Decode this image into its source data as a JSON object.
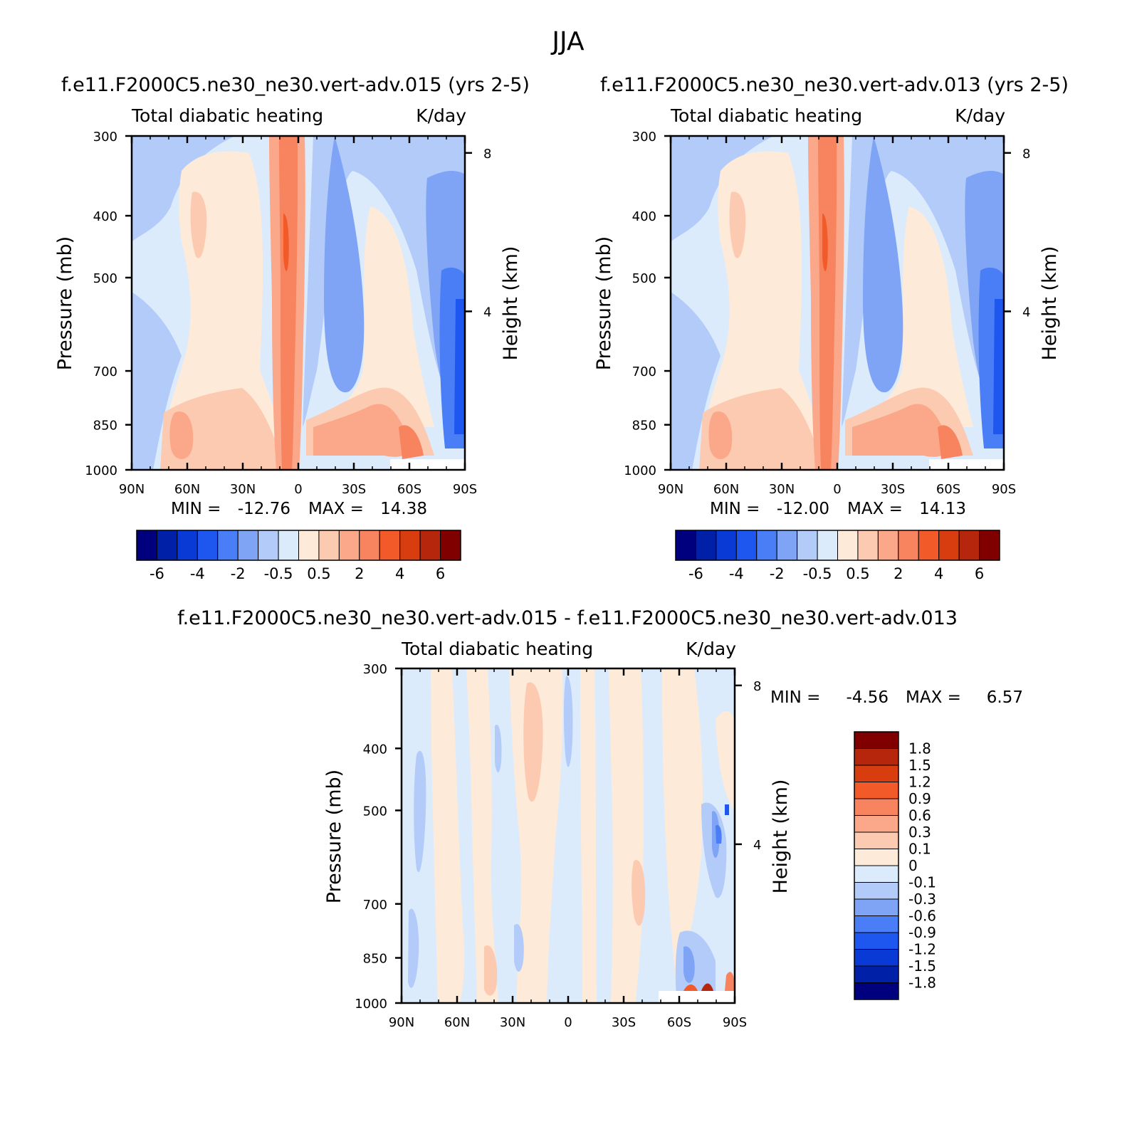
{
  "figure": {
    "title": "JJA"
  },
  "chart_data": [
    {
      "id": "p1",
      "type": "heatmap",
      "title": "f.e11.F2000C5.ne30_ne30.vert-adv.015 (yrs 2-5)",
      "left_string": "Total diabatic heating",
      "right_string": "K/day",
      "xlabel": "",
      "ylabel": "Pressure (mb)",
      "y2label": "Height (km)",
      "x_ticks": [
        "90N",
        "60N",
        "30N",
        "0",
        "30S",
        "60S",
        "90S"
      ],
      "y_ticks": [
        "300",
        "400",
        "500",
        "700",
        "850",
        "1000"
      ],
      "y2_ticks": [
        "8",
        "4"
      ],
      "ylim": [
        1000,
        300
      ],
      "stats": {
        "min_label": "MIN =",
        "min": "-12.76",
        "max_label": "MAX =",
        "max": "14.38"
      },
      "levels": [
        -6,
        -5,
        -4,
        -3,
        -2,
        -1,
        -0.5,
        0,
        0.5,
        1,
        2,
        3,
        4,
        5,
        6
      ],
      "colorbar_labels": [
        "-6",
        "-4",
        "-2",
        "-0.5",
        "0.5",
        "2",
        "4",
        "6"
      ],
      "colors": [
        "#00007f",
        "#0020a8",
        "#0a3ad6",
        "#1e56f0",
        "#4a7ef6",
        "#7fa4f6",
        "#b3cbf9",
        "#dcebfc",
        "#feead8",
        "#fccab0",
        "#fba88a",
        "#f7845e",
        "#f25a2a",
        "#d83d10",
        "#b5260c",
        "#800000"
      ],
      "colorbar_orientation": "horizontal"
    },
    {
      "id": "p2",
      "type": "heatmap",
      "title": "f.e11.F2000C5.ne30_ne30.vert-adv.013 (yrs 2-5)",
      "left_string": "Total diabatic heating",
      "right_string": "K/day",
      "xlabel": "",
      "ylabel": "Pressure (mb)",
      "y2label": "Height (km)",
      "x_ticks": [
        "90N",
        "60N",
        "30N",
        "0",
        "30S",
        "60S",
        "90S"
      ],
      "y_ticks": [
        "300",
        "400",
        "500",
        "700",
        "850",
        "1000"
      ],
      "y2_ticks": [
        "8",
        "4"
      ],
      "ylim": [
        1000,
        300
      ],
      "stats": {
        "min_label": "MIN =",
        "min": "-12.00",
        "max_label": "MAX =",
        "max": "14.13"
      },
      "levels": [
        -6,
        -5,
        -4,
        -3,
        -2,
        -1,
        -0.5,
        0,
        0.5,
        1,
        2,
        3,
        4,
        5,
        6
      ],
      "colorbar_labels": [
        "-6",
        "-4",
        "-2",
        "-0.5",
        "0.5",
        "2",
        "4",
        "6"
      ],
      "colors": [
        "#00007f",
        "#0020a8",
        "#0a3ad6",
        "#1e56f0",
        "#4a7ef6",
        "#7fa4f6",
        "#b3cbf9",
        "#dcebfc",
        "#feead8",
        "#fccab0",
        "#fba88a",
        "#f7845e",
        "#f25a2a",
        "#d83d10",
        "#b5260c",
        "#800000"
      ],
      "colorbar_orientation": "horizontal"
    },
    {
      "id": "p3",
      "type": "heatmap",
      "title": "f.e11.F2000C5.ne30_ne30.vert-adv.015 - f.e11.F2000C5.ne30_ne30.vert-adv.013",
      "left_string": "Total diabatic heating",
      "right_string": "K/day",
      "xlabel": "",
      "ylabel": "Pressure (mb)",
      "y2label": "Height (km)",
      "x_ticks": [
        "90N",
        "60N",
        "30N",
        "0",
        "30S",
        "60S",
        "90S"
      ],
      "y_ticks": [
        "300",
        "400",
        "500",
        "700",
        "850",
        "1000"
      ],
      "y2_ticks": [
        "8",
        "4"
      ],
      "ylim": [
        1000,
        300
      ],
      "stats": {
        "min_label": "MIN =",
        "min": "-4.56",
        "max_label": "MAX =",
        "max": "6.57"
      },
      "levels": [
        -1.8,
        -1.5,
        -1.2,
        -0.9,
        -0.6,
        -0.3,
        -0.1,
        0,
        0.1,
        0.3,
        0.6,
        0.9,
        1.2,
        1.5,
        1.8
      ],
      "colorbar_labels": [
        "1.8",
        "1.5",
        "1.2",
        "0.9",
        "0.6",
        "0.3",
        "0.1",
        "0",
        "-0.1",
        "-0.3",
        "-0.6",
        "-0.9",
        "-1.2",
        "-1.5",
        "-1.8"
      ],
      "colors": [
        "#00007f",
        "#0020a8",
        "#0a3ad6",
        "#1e56f0",
        "#4a7ef6",
        "#7fa4f6",
        "#b3cbf9",
        "#dcebfc",
        "#feead8",
        "#fccab0",
        "#fba88a",
        "#f7845e",
        "#f25a2a",
        "#d83d10",
        "#b5260c",
        "#800000"
      ],
      "colorbar_orientation": "vertical"
    }
  ]
}
